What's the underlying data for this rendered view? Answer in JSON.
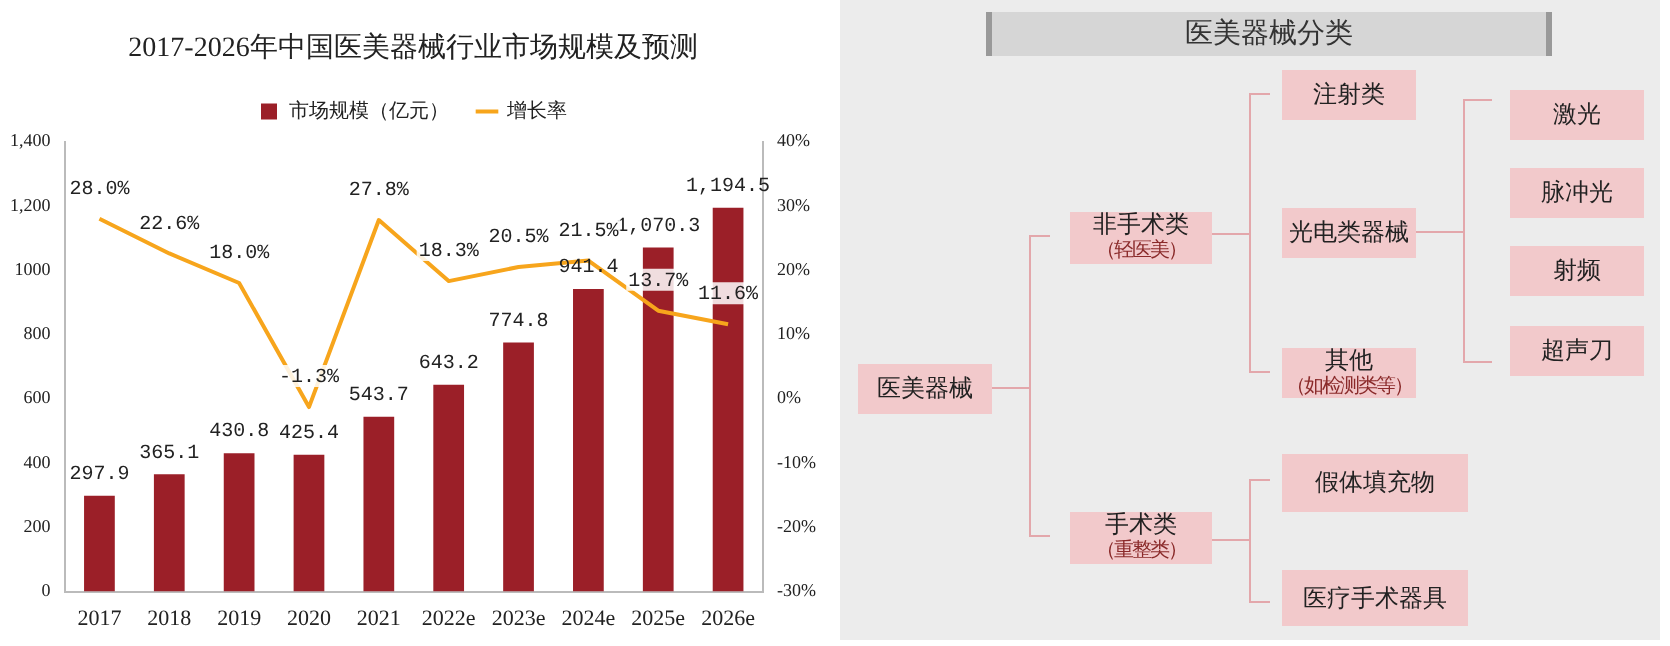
{
  "chart_data": [
    {
      "type": "bar",
      "title": "2017-2026年中国医美器械行业市场规模及预测",
      "categories": [
        "2017",
        "2018",
        "2019",
        "2020",
        "2021",
        "2022e",
        "2023e",
        "2024e",
        "2025e",
        "2026e"
      ],
      "series": [
        {
          "name": "市场规模（亿元）",
          "color": "#9b1f28",
          "values": [
            297.9,
            365.1,
            430.8,
            425.4,
            543.7,
            643.2,
            774.8,
            941.4,
            1070.3,
            1194.5
          ],
          "value_labels": [
            "297.9",
            "365.1",
            "430.8",
            "425.4",
            "543.7",
            "643.2",
            "774.8",
            "941.4",
            "1,070.3",
            "1,194.5"
          ]
        },
        {
          "name": "增长率",
          "type": "line",
          "axis": "y2",
          "color": "#f7a51c",
          "marker": "none",
          "values": [
            28.0,
            22.6,
            18.0,
            -1.3,
            27.8,
            18.3,
            20.5,
            21.5,
            13.7,
            11.6
          ],
          "value_labels": [
            "28.0%",
            "22.6%",
            "18.0%",
            "-1.3%",
            "27.8%",
            "18.3%",
            "20.5%",
            "21.5%",
            "13.7%",
            "11.6%"
          ]
        }
      ],
      "ylim": [
        0,
        1400
      ],
      "yticks": [
        0,
        200,
        400,
        600,
        800,
        1000,
        {
          "value": 1200,
          "label": "1,200"
        },
        {
          "value": 1400,
          "label": "1,400"
        }
      ],
      "y2lim": [
        -30,
        40
      ],
      "y2ticks": [
        {
          "value": -30,
          "label": "-30%"
        },
        {
          "value": -20,
          "label": "-20%"
        },
        {
          "value": -10,
          "label": "-10%"
        },
        {
          "value": 0,
          "label": "0%"
        },
        {
          "value": 10,
          "label": "10%"
        },
        {
          "value": 20,
          "label": "20%"
        },
        {
          "value": 30,
          "label": "30%"
        },
        {
          "value": 40,
          "label": "40%"
        }
      ],
      "grid": false,
      "legend": "top"
    },
    {
      "type": "other",
      "title": "医美器械分类",
      "annotations": [
        "医美器械",
        "非手术类",
        "（轻医美）",
        "手术类",
        "（重整类）",
        "注射类",
        "光电类器械",
        "其他",
        "（如检测类等）",
        "假体填充物",
        "医疗手术器具",
        "激光",
        "脉冲光",
        "射频",
        "超声刀"
      ]
    }
  ]
}
